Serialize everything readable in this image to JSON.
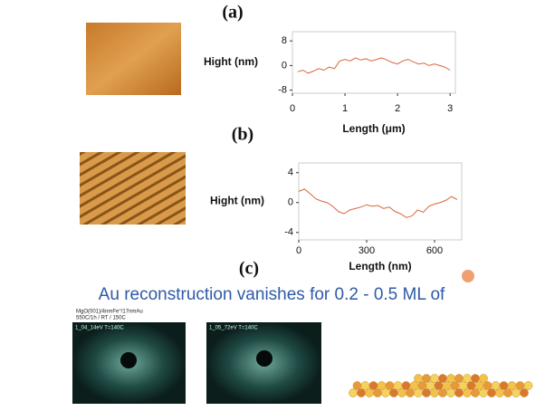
{
  "panel_labels": [
    "(a)",
    "(b)",
    "(c)"
  ],
  "caption": "Au reconstruction vanishes for 0.2 - 0.5 ML of",
  "leed_header": [
    "MgO(001)/4nmFe°/17nmAu",
    "550C/1h  /  RT  /  150C"
  ],
  "leed_labels": [
    "1_04_14eV T=140C",
    "1_05_72eV T=140C"
  ],
  "chart_data": [
    {
      "type": "line",
      "ylabel": "Hight (nm)",
      "xlabel": "Length (μm)",
      "color": "#d9663a",
      "xlim": [
        0,
        3.1
      ],
      "xticks": [
        0,
        1,
        2,
        3
      ],
      "ylim": [
        -9,
        11
      ],
      "yticks": [
        8,
        0,
        -8
      ],
      "x": [
        0.1,
        0.2,
        0.3,
        0.4,
        0.5,
        0.6,
        0.7,
        0.8,
        0.9,
        1.0,
        1.1,
        1.2,
        1.3,
        1.4,
        1.5,
        1.6,
        1.7,
        1.8,
        1.9,
        2.0,
        2.1,
        2.2,
        2.3,
        2.4,
        2.5,
        2.6,
        2.7,
        2.8,
        2.9,
        3.0
      ],
      "values": [
        -2,
        -1.5,
        -2.5,
        -1.8,
        -1,
        -1.5,
        -0.5,
        -1,
        1.5,
        2,
        1.5,
        2.5,
        1.8,
        2.2,
        1.5,
        2,
        2.5,
        1.8,
        1,
        0.5,
        1.5,
        2,
        1.2,
        0.5,
        0.8,
        0,
        0.5,
        0,
        -0.5,
        -1.5
      ]
    },
    {
      "type": "line",
      "ylabel": "Hight (nm)",
      "xlabel": "Length (nm)",
      "color": "#d9663a",
      "xlim": [
        0,
        720
      ],
      "xticks": [
        0,
        300,
        600
      ],
      "ylim": [
        -5,
        5.3
      ],
      "yticks": [
        4,
        0,
        -4
      ],
      "x": [
        0,
        25,
        50,
        75,
        100,
        125,
        150,
        175,
        200,
        225,
        250,
        275,
        300,
        325,
        350,
        375,
        400,
        425,
        450,
        475,
        500,
        525,
        550,
        575,
        600,
        625,
        650,
        675,
        700
      ],
      "values": [
        1.5,
        1.8,
        1.2,
        0.5,
        0.2,
        0,
        -0.5,
        -1.2,
        -1.5,
        -1,
        -0.8,
        -0.6,
        -0.3,
        -0.5,
        -0.4,
        -0.8,
        -0.6,
        -1.2,
        -1.5,
        -2,
        -1.8,
        -1,
        -1.3,
        -0.5,
        -0.2,
        0,
        0.3,
        0.8,
        0.4
      ]
    }
  ]
}
